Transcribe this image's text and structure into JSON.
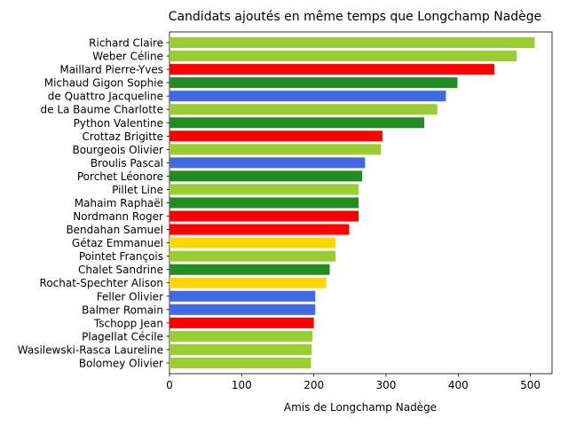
{
  "chart_data": {
    "type": "bar",
    "orientation": "horizontal",
    "title": "Candidats ajoutés en même temps que Longchamp Nadège",
    "xlabel": "Amis de Longchamp Nadège",
    "ylabel": "",
    "xlim": [
      0,
      530
    ],
    "xticks": [
      0,
      100,
      200,
      300,
      400,
      500
    ],
    "grid": false,
    "categories": [
      "Richard Claire",
      "Weber Céline",
      "Maillard Pierre-Yves",
      "Michaud Gigon Sophie",
      "de Quattro Jacqueline",
      "de La Baume Charlotte",
      "Python Valentine",
      "Crottaz Brigitte",
      "Bourgeois Olivier",
      "Broulis Pascal",
      "Porchet Léonore",
      "Pillet Line",
      "Mahaim Raphaël",
      "Nordmann Roger",
      "Bendahan Samuel",
      "Gétaz Emmanuel",
      "Pointet François",
      "Chalet Sandrine",
      "Rochat-Spechter Alison",
      "Feller Olivier",
      "Balmer Romain",
      "Tschopp Jean",
      "Plagellat Cécile",
      "Wasilewski-Rasca Laureline",
      "Bolomey Olivier"
    ],
    "values": [
      506,
      481,
      450,
      399,
      383,
      371,
      353,
      295,
      293,
      271,
      267,
      262,
      262,
      262,
      249,
      230,
      230,
      222,
      217,
      202,
      202,
      200,
      198,
      197,
      196
    ],
    "colors": [
      "#9acd32",
      "#9acd32",
      "#ff0000",
      "#228b22",
      "#4169e1",
      "#9acd32",
      "#228b22",
      "#ff0000",
      "#9acd32",
      "#4169e1",
      "#228b22",
      "#9acd32",
      "#228b22",
      "#ff0000",
      "#ff0000",
      "#ffd700",
      "#9acd32",
      "#228b22",
      "#ffd700",
      "#4169e1",
      "#4169e1",
      "#ff0000",
      "#9acd32",
      "#9acd32",
      "#9acd32"
    ]
  }
}
